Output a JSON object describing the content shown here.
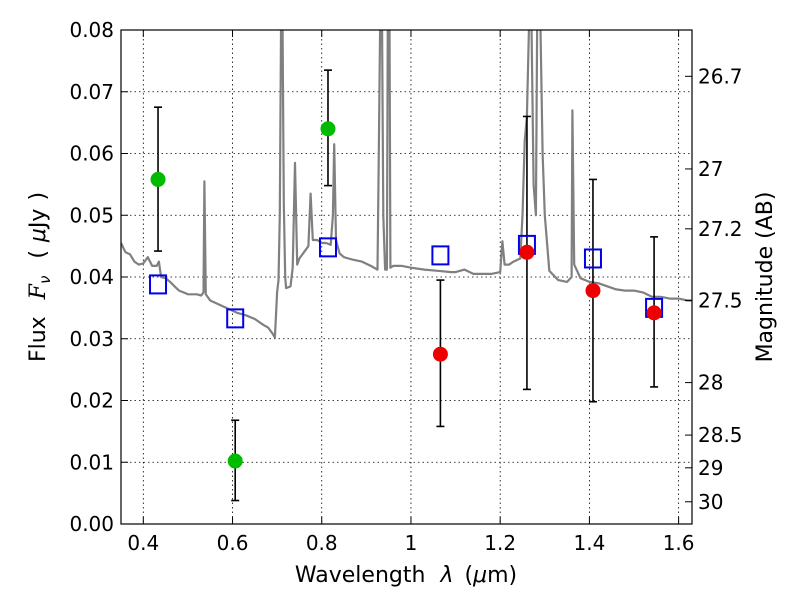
{
  "chart_data": {
    "type": "scatter",
    "xlabel_text": "Wavelength",
    "xlabel_symbol": "λ",
    "xlabel_unit_open": "(",
    "xlabel_unit_mu": "μ",
    "xlabel_unit_rest": "m)",
    "ylabel_text": "Flux",
    "ylabel_symbol": "F",
    "ylabel_sub": "ν",
    "ylabel_unit_open": "(",
    "ylabel_unit_mu": "μ",
    "ylabel_unit_rest": "Jy",
    "ylabel_unit_close": ")",
    "y2label": "Magnitude (AB)",
    "xlim": [
      0.35,
      1.63
    ],
    "ylim": [
      0.0,
      0.08
    ],
    "grid": true,
    "x_ticks": [
      {
        "value": 0.4,
        "label": "0.4"
      },
      {
        "value": 0.6,
        "label": "0.6"
      },
      {
        "value": 0.8,
        "label": "0.8"
      },
      {
        "value": 1.0,
        "label": "1"
      },
      {
        "value": 1.2,
        "label": "1.2"
      },
      {
        "value": 1.4,
        "label": "1.4"
      },
      {
        "value": 1.6,
        "label": "1.6"
      }
    ],
    "y_ticks": [
      {
        "value": 0.0,
        "label": "0.00"
      },
      {
        "value": 0.01,
        "label": "0.01"
      },
      {
        "value": 0.02,
        "label": "0.02"
      },
      {
        "value": 0.03,
        "label": "0.03"
      },
      {
        "value": 0.04,
        "label": "0.04"
      },
      {
        "value": 0.05,
        "label": "0.05"
      },
      {
        "value": 0.06,
        "label": "0.06"
      },
      {
        "value": 0.07,
        "label": "0.07"
      },
      {
        "value": 0.08,
        "label": "0.08"
      }
    ],
    "y2_ticks": [
      {
        "flux": 0.0725,
        "label": "26.7"
      },
      {
        "flux": 0.0575,
        "label": "27"
      },
      {
        "flux": 0.0478,
        "label": "27.2"
      },
      {
        "flux": 0.0362,
        "label": "27.5"
      },
      {
        "flux": 0.0229,
        "label": "28"
      },
      {
        "flux": 0.0144,
        "label": "28.5"
      },
      {
        "flux": 0.0091,
        "label": "29"
      },
      {
        "flux": 0.0036,
        "label": "30"
      }
    ],
    "colors": {
      "spectrum": "#808080",
      "green": "#00bb00",
      "red": "#ee0000",
      "model_box": "#0000ee",
      "errorbar": "#000000",
      "grid": "#000000"
    },
    "spectrum": [
      [
        0.35,
        0.0455
      ],
      [
        0.36,
        0.044
      ],
      [
        0.37,
        0.0437
      ],
      [
        0.38,
        0.0425
      ],
      [
        0.39,
        0.042
      ],
      [
        0.4,
        0.0422
      ],
      [
        0.41,
        0.0432
      ],
      [
        0.42,
        0.0418
      ],
      [
        0.43,
        0.0418
      ],
      [
        0.435,
        0.0425
      ],
      [
        0.44,
        0.04
      ],
      [
        0.45,
        0.0398
      ],
      [
        0.46,
        0.0392
      ],
      [
        0.47,
        0.0385
      ],
      [
        0.48,
        0.0378
      ],
      [
        0.49,
        0.0375
      ],
      [
        0.5,
        0.0372
      ],
      [
        0.51,
        0.0372
      ],
      [
        0.52,
        0.0372
      ],
      [
        0.53,
        0.037
      ],
      [
        0.535,
        0.0375
      ],
      [
        0.537,
        0.0555
      ],
      [
        0.54,
        0.0372
      ],
      [
        0.55,
        0.0362
      ],
      [
        0.58,
        0.0352
      ],
      [
        0.61,
        0.0342
      ],
      [
        0.63,
        0.0338
      ],
      [
        0.65,
        0.0332
      ],
      [
        0.67,
        0.0322
      ],
      [
        0.68,
        0.0318
      ],
      [
        0.69,
        0.0308
      ],
      [
        0.695,
        0.0302
      ],
      [
        0.7,
        0.0375
      ],
      [
        0.703,
        0.0395
      ],
      [
        0.706,
        0.05
      ],
      [
        0.709,
        0.082
      ],
      [
        0.712,
        0.082
      ],
      [
        0.715,
        0.052
      ],
      [
        0.718,
        0.04
      ],
      [
        0.72,
        0.0382
      ],
      [
        0.73,
        0.0385
      ],
      [
        0.735,
        0.0415
      ],
      [
        0.74,
        0.0585
      ],
      [
        0.745,
        0.042
      ],
      [
        0.75,
        0.043
      ],
      [
        0.76,
        0.044
      ],
      [
        0.77,
        0.045
      ],
      [
        0.775,
        0.0535
      ],
      [
        0.78,
        0.046
      ],
      [
        0.79,
        0.046
      ],
      [
        0.8,
        0.0455
      ],
      [
        0.81,
        0.0455
      ],
      [
        0.82,
        0.0452
      ],
      [
        0.825,
        0.05
      ],
      [
        0.828,
        0.0615
      ],
      [
        0.832,
        0.046
      ],
      [
        0.84,
        0.0438
      ],
      [
        0.85,
        0.0432
      ],
      [
        0.86,
        0.043
      ],
      [
        0.87,
        0.0428
      ],
      [
        0.89,
        0.0425
      ],
      [
        0.91,
        0.0418
      ],
      [
        0.925,
        0.0412
      ],
      [
        0.928,
        0.06
      ],
      [
        0.931,
        0.082
      ],
      [
        0.935,
        0.082
      ],
      [
        0.938,
        0.05
      ],
      [
        0.942,
        0.0412
      ],
      [
        0.946,
        0.0412
      ],
      [
        0.948,
        0.082
      ],
      [
        0.952,
        0.082
      ],
      [
        0.954,
        0.0415
      ],
      [
        0.96,
        0.0418
      ],
      [
        0.98,
        0.0418
      ],
      [
        1.0,
        0.0415
      ],
      [
        1.03,
        0.0412
      ],
      [
        1.06,
        0.041
      ],
      [
        1.09,
        0.0408
      ],
      [
        1.1,
        0.0408
      ],
      [
        1.12,
        0.0412
      ],
      [
        1.14,
        0.0405
      ],
      [
        1.16,
        0.0405
      ],
      [
        1.18,
        0.0405
      ],
      [
        1.2,
        0.0408
      ],
      [
        1.205,
        0.0458
      ],
      [
        1.21,
        0.042
      ],
      [
        1.22,
        0.042
      ],
      [
        1.23,
        0.0425
      ],
      [
        1.245,
        0.043
      ],
      [
        1.25,
        0.05
      ],
      [
        1.255,
        0.062
      ],
      [
        1.26,
        0.066
      ],
      [
        1.265,
        0.082
      ],
      [
        1.27,
        0.082
      ],
      [
        1.275,
        0.055
      ],
      [
        1.28,
        0.05
      ],
      [
        1.283,
        0.082
      ],
      [
        1.29,
        0.082
      ],
      [
        1.295,
        0.06
      ],
      [
        1.3,
        0.05
      ],
      [
        1.31,
        0.041
      ],
      [
        1.33,
        0.0395
      ],
      [
        1.35,
        0.0392
      ],
      [
        1.36,
        0.04
      ],
      [
        1.362,
        0.067
      ],
      [
        1.366,
        0.042
      ],
      [
        1.38,
        0.0398
      ],
      [
        1.4,
        0.0392
      ],
      [
        1.42,
        0.039
      ],
      [
        1.44,
        0.0385
      ],
      [
        1.46,
        0.038
      ],
      [
        1.48,
        0.0378
      ],
      [
        1.5,
        0.0378
      ],
      [
        1.52,
        0.0375
      ],
      [
        1.54,
        0.0368
      ],
      [
        1.56,
        0.0368
      ],
      [
        1.58,
        0.0365
      ],
      [
        1.6,
        0.0365
      ],
      [
        1.62,
        0.0362
      ],
      [
        1.63,
        0.0362
      ]
    ],
    "observed_green": [
      {
        "x": 0.433,
        "y": 0.0558,
        "err_low": 0.0442,
        "err_high": 0.0675
      },
      {
        "x": 0.606,
        "y": 0.0102,
        "err_low": 0.0038,
        "err_high": 0.0168
      },
      {
        "x": 0.814,
        "y": 0.064,
        "err_low": 0.0548,
        "err_high": 0.0735
      }
    ],
    "observed_red": [
      {
        "x": 1.066,
        "y": 0.0275,
        "err_low": 0.0158,
        "err_high": 0.0395
      },
      {
        "x": 1.26,
        "y": 0.044,
        "err_low": 0.0218,
        "err_high": 0.066
      },
      {
        "x": 1.408,
        "y": 0.0378,
        "err_low": 0.0198,
        "err_high": 0.0558
      },
      {
        "x": 1.545,
        "y": 0.0342,
        "err_low": 0.0222,
        "err_high": 0.0465
      }
    ],
    "model_boxes": [
      {
        "x": 0.433,
        "y": 0.0388
      },
      {
        "x": 0.606,
        "y": 0.0333
      },
      {
        "x": 0.814,
        "y": 0.0448
      },
      {
        "x": 1.066,
        "y": 0.0435
      },
      {
        "x": 1.26,
        "y": 0.0452
      },
      {
        "x": 1.408,
        "y": 0.043
      },
      {
        "x": 1.545,
        "y": 0.035
      }
    ]
  }
}
